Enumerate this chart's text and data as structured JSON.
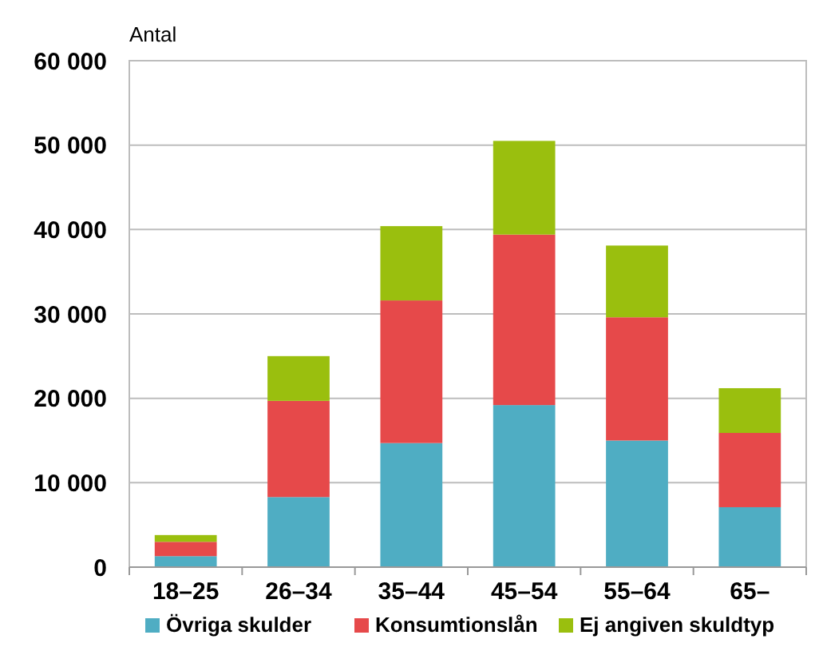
{
  "chart_data": {
    "type": "bar",
    "stacked": true,
    "ylabel": "Antal",
    "categories": [
      "18–25",
      "26–34",
      "35–44",
      "45–54",
      "55–64",
      "65–"
    ],
    "series": [
      {
        "name": "Övriga skulder",
        "color": "#4fadc3",
        "values": [
          1300,
          8300,
          14700,
          19200,
          15000,
          7100
        ]
      },
      {
        "name": "Konsumtionslån",
        "color": "#e6494a",
        "values": [
          1700,
          11400,
          16900,
          20200,
          14600,
          8800
        ]
      },
      {
        "name": "Ej angiven skuldtyp",
        "color": "#9abf0e",
        "values": [
          800,
          5300,
          8800,
          11100,
          8500,
          5300
        ]
      }
    ],
    "ylim": [
      0,
      60000
    ],
    "yticks": [
      {
        "value": 0,
        "label": "0"
      },
      {
        "value": 10000,
        "label": "10 000"
      },
      {
        "value": 20000,
        "label": "20 000"
      },
      {
        "value": 30000,
        "label": "30 000"
      },
      {
        "value": 40000,
        "label": "40 000"
      },
      {
        "value": 50000,
        "label": "50 000"
      },
      {
        "value": 60000,
        "label": "60 000"
      }
    ],
    "grid": "y",
    "legend": "bottom"
  }
}
